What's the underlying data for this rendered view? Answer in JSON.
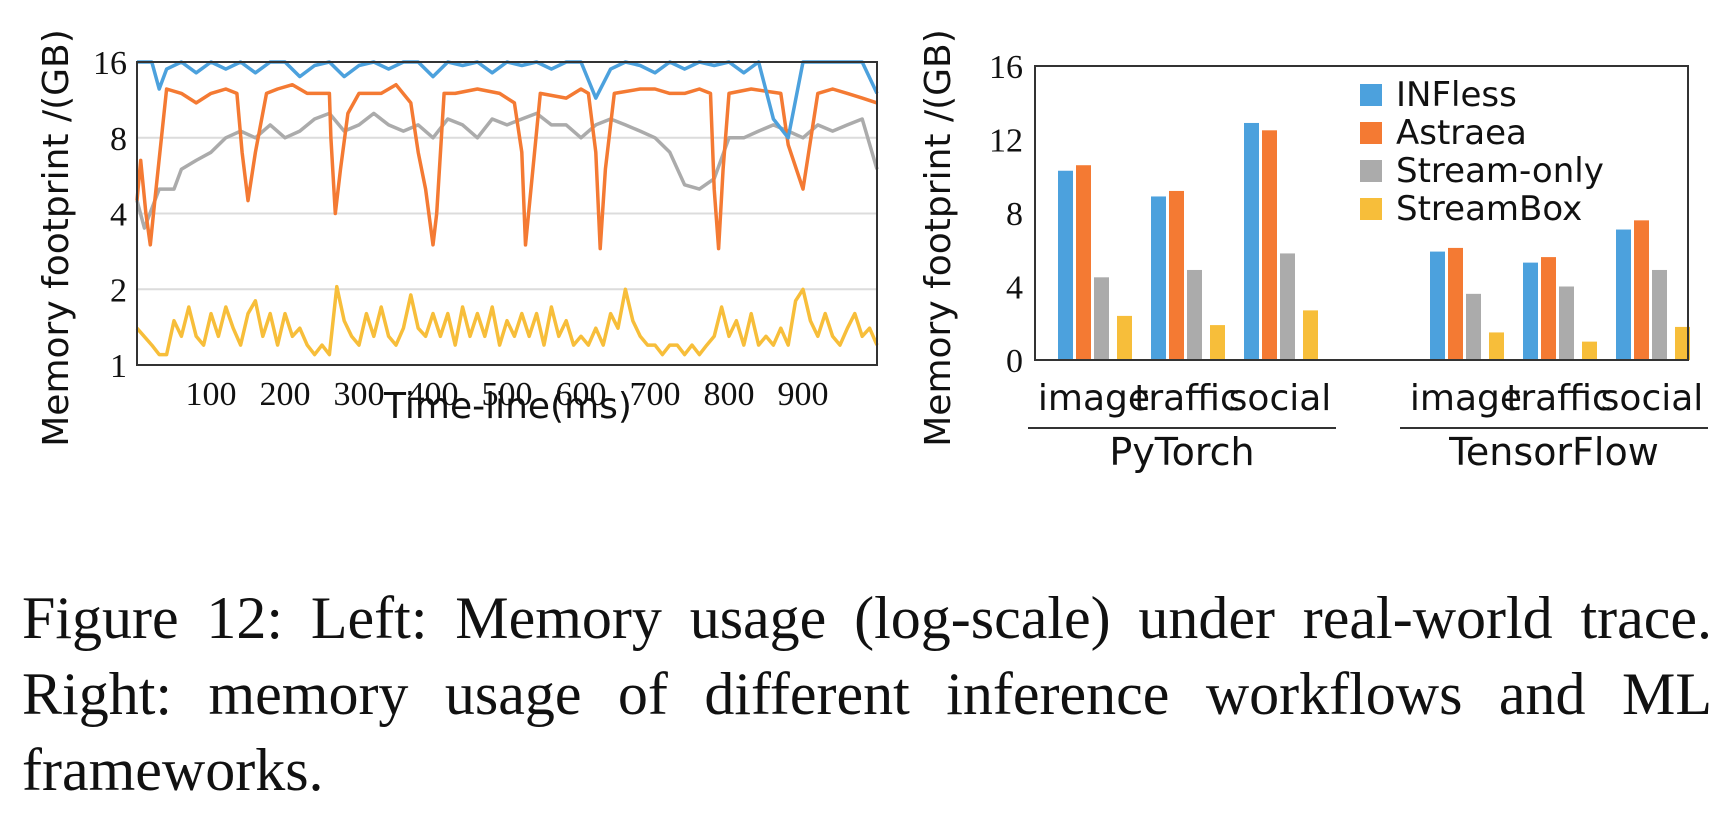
{
  "colors": {
    "INFless": "#4ca1dd",
    "Astraea": "#f47a33",
    "Stream-only": "#ababab",
    "StreamBox": "#f7be3a",
    "gridline": "#dcdcdc"
  },
  "caption": "Figure 12: Left: Memory usage (log-scale) under real-world trace. Right: memory usage of different inference workflows and ML frameworks.",
  "chart_data": [
    {
      "type": "line",
      "xlabel": "Time-line(ms)",
      "ylabel": "Memory footprint /(GB)",
      "yscale": "log2",
      "ylim": [
        1,
        16
      ],
      "xlim": [
        0,
        1000
      ],
      "yticks": [
        1,
        2,
        4,
        8,
        16
      ],
      "ytick_labels": [
        "1",
        "2",
        "4",
        "8",
        "16"
      ],
      "xticks": [
        100,
        200,
        300,
        400,
        500,
        600,
        700,
        800,
        900
      ],
      "xtick_labels": [
        "100",
        "200",
        "300",
        "400",
        "500",
        "600",
        "700",
        "800",
        "900"
      ],
      "grid": "horizontal",
      "series": [
        {
          "name": "INFless",
          "x": [
            0,
            20,
            30,
            40,
            60,
            80,
            100,
            120,
            140,
            160,
            180,
            200,
            220,
            240,
            260,
            280,
            300,
            320,
            340,
            360,
            380,
            400,
            420,
            440,
            460,
            480,
            500,
            520,
            540,
            560,
            580,
            600,
            620,
            640,
            660,
            680,
            700,
            720,
            740,
            760,
            780,
            800,
            820,
            840,
            860,
            880,
            900,
            920,
            940,
            960,
            980,
            1000
          ],
          "y": [
            16,
            16,
            12.5,
            15,
            16,
            14.5,
            16,
            15,
            16,
            14.5,
            16,
            16,
            14,
            15.5,
            16,
            14,
            15.5,
            16,
            15,
            16,
            16,
            14,
            16,
            15.5,
            16,
            14.5,
            16,
            15.5,
            16,
            15,
            16,
            16,
            11.5,
            15,
            16,
            15.5,
            14.5,
            16,
            15,
            16,
            15.5,
            16,
            14.5,
            16,
            9.5,
            8,
            16,
            16,
            16,
            16,
            16,
            12
          ]
        },
        {
          "name": "Astraea",
          "x": [
            0,
            5,
            12,
            18,
            24,
            40,
            60,
            80,
            100,
            120,
            135,
            142,
            150,
            160,
            175,
            190,
            210,
            230,
            260,
            262,
            268,
            275,
            285,
            300,
            330,
            350,
            370,
            380,
            390,
            400,
            405,
            415,
            430,
            460,
            490,
            510,
            520,
            525,
            535,
            545,
            580,
            600,
            610,
            620,
            626,
            633,
            645,
            680,
            700,
            720,
            740,
            760,
            775,
            780,
            786,
            792,
            800,
            830,
            870,
            880,
            900,
            920,
            940,
            960,
            980,
            1000
          ],
          "y": [
            4.5,
            6.5,
            4,
            3,
            4.5,
            12.5,
            12,
            11,
            12,
            12.5,
            12,
            7,
            4.5,
            7,
            12,
            12.5,
            13,
            12,
            12,
            8,
            4,
            6,
            10,
            12,
            12,
            13,
            11,
            7,
            5,
            3,
            4,
            12,
            12,
            12.5,
            12,
            11,
            7,
            3,
            6,
            12,
            11.5,
            12.5,
            12,
            7,
            2.9,
            6,
            12,
            12.5,
            12.5,
            12,
            12,
            12.5,
            12,
            5,
            2.9,
            6,
            12,
            12.5,
            12,
            7.5,
            5,
            12,
            12.5,
            12,
            11.5,
            11
          ]
        },
        {
          "name": "Stream-only",
          "x": [
            0,
            10,
            30,
            50,
            60,
            80,
            100,
            120,
            140,
            160,
            180,
            200,
            220,
            240,
            260,
            280,
            300,
            320,
            340,
            360,
            380,
            400,
            420,
            440,
            460,
            480,
            500,
            520,
            540,
            560,
            580,
            600,
            620,
            640,
            660,
            680,
            700,
            720,
            740,
            760,
            780,
            800,
            820,
            840,
            860,
            880,
            900,
            920,
            940,
            960,
            980,
            1000
          ],
          "y": [
            4.5,
            3.5,
            5,
            5,
            6,
            6.5,
            7,
            8,
            8.5,
            8,
            9,
            8,
            8.5,
            9.5,
            10,
            8.5,
            9,
            10,
            9,
            8.5,
            9,
            8,
            9.5,
            9,
            8,
            9.5,
            9,
            9.5,
            10,
            9,
            9,
            8,
            9,
            9.5,
            9,
            8.5,
            8,
            7,
            5.2,
            5,
            5.5,
            8,
            8,
            8.5,
            9,
            8.5,
            8,
            9,
            8.5,
            9,
            9.5,
            6
          ]
        },
        {
          "name": "StreamBox",
          "x": [
            0,
            20,
            30,
            40,
            50,
            60,
            70,
            80,
            90,
            100,
            110,
            120,
            130,
            140,
            150,
            160,
            170,
            180,
            190,
            200,
            210,
            220,
            230,
            240,
            250,
            260,
            270,
            280,
            290,
            300,
            310,
            320,
            330,
            340,
            350,
            360,
            370,
            380,
            390,
            400,
            410,
            420,
            430,
            440,
            450,
            460,
            470,
            480,
            490,
            500,
            510,
            520,
            530,
            540,
            550,
            560,
            570,
            580,
            590,
            600,
            610,
            620,
            630,
            640,
            650,
            660,
            670,
            680,
            690,
            700,
            710,
            720,
            730,
            740,
            750,
            760,
            770,
            780,
            790,
            800,
            810,
            820,
            830,
            840,
            850,
            860,
            870,
            880,
            890,
            900,
            910,
            920,
            930,
            940,
            950,
            960,
            970,
            980,
            990,
            1000
          ],
          "y": [
            1.4,
            1.2,
            1.1,
            1.1,
            1.5,
            1.3,
            1.7,
            1.3,
            1.2,
            1.6,
            1.3,
            1.7,
            1.4,
            1.2,
            1.6,
            1.8,
            1.3,
            1.6,
            1.2,
            1.6,
            1.3,
            1.4,
            1.2,
            1.1,
            1.2,
            1.1,
            2.05,
            1.5,
            1.3,
            1.2,
            1.6,
            1.3,
            1.7,
            1.3,
            1.2,
            1.4,
            1.9,
            1.4,
            1.3,
            1.6,
            1.3,
            1.6,
            1.2,
            1.7,
            1.3,
            1.6,
            1.3,
            1.7,
            1.2,
            1.5,
            1.3,
            1.6,
            1.3,
            1.6,
            1.2,
            1.7,
            1.3,
            1.5,
            1.2,
            1.3,
            1.2,
            1.4,
            1.2,
            1.6,
            1.4,
            2.0,
            1.5,
            1.3,
            1.2,
            1.2,
            1.1,
            1.2,
            1.2,
            1.1,
            1.2,
            1.1,
            1.2,
            1.3,
            1.7,
            1.3,
            1.5,
            1.2,
            1.6,
            1.2,
            1.3,
            1.2,
            1.4,
            1.2,
            1.8,
            2.0,
            1.5,
            1.3,
            1.6,
            1.3,
            1.2,
            1.4,
            1.6,
            1.3,
            1.4,
            1.2
          ]
        }
      ]
    },
    {
      "type": "bar",
      "ylabel": "Memory footprint /(GB)",
      "ylim": [
        0,
        16
      ],
      "yticks": [
        0,
        4,
        8,
        12,
        16
      ],
      "ytick_labels": [
        "0",
        "4",
        "8",
        "12",
        "16"
      ],
      "groups": [
        {
          "label": "PyTorch",
          "categories": [
            "image",
            "traffic",
            "social"
          ]
        },
        {
          "label": "TensorFlow",
          "categories": [
            "image",
            "traffic",
            "social"
          ]
        }
      ],
      "legend_position": "top-right",
      "series": [
        {
          "name": "INFless",
          "values": [
            10.3,
            8.9,
            12.9,
            5.9,
            5.3,
            7.1
          ]
        },
        {
          "name": "Astraea",
          "values": [
            10.6,
            9.2,
            12.5,
            6.1,
            5.6,
            7.6
          ]
        },
        {
          "name": "Stream-only",
          "values": [
            4.5,
            4.9,
            5.8,
            3.6,
            4.0,
            4.9
          ]
        },
        {
          "name": "StreamBox",
          "values": [
            2.4,
            1.9,
            2.7,
            1.5,
            1.0,
            1.8
          ]
        }
      ]
    }
  ]
}
